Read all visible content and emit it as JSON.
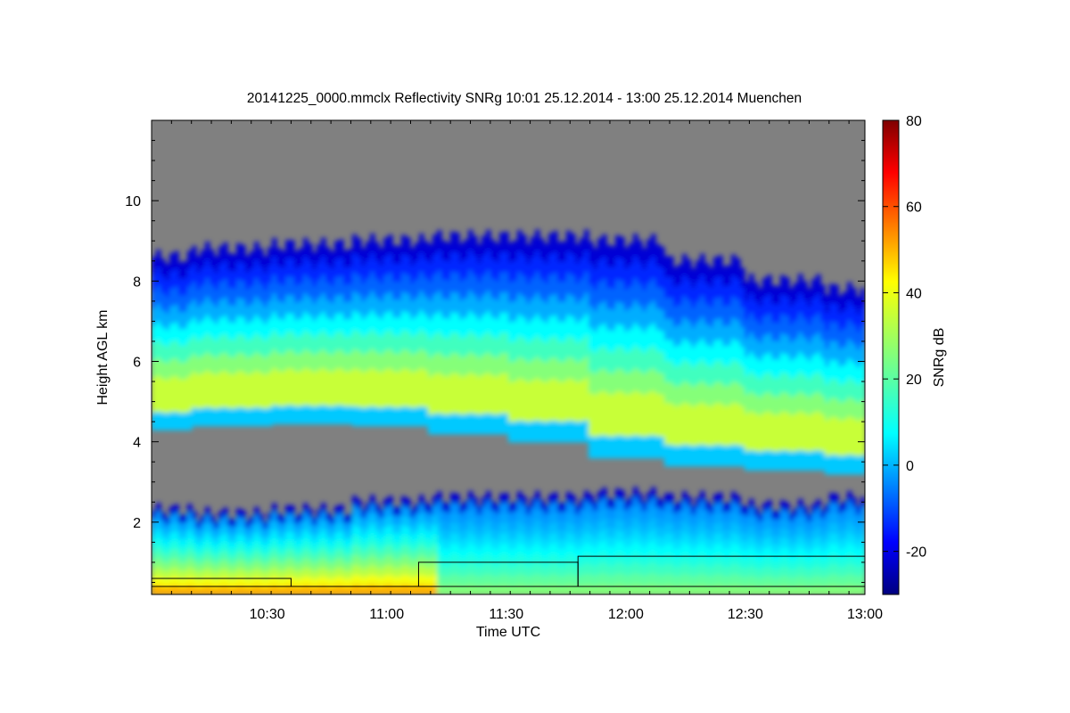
{
  "chart_data": {
    "type": "heatmap",
    "title": "20141225_0000.mmclx Reflectivity SNRg   10:01 25.12.2014 - 13:00 25.12.2014 Muenchen",
    "xlabel": "Time UTC",
    "ylabel": "Height AGL km",
    "xlim": [
      "10:01",
      "13:00"
    ],
    "ylim": [
      0.2,
      12.0
    ],
    "x_ticks": [
      "10:30",
      "11:00",
      "11:30",
      "12:00",
      "12:30",
      "13:00"
    ],
    "y_ticks": [
      2,
      4,
      6,
      8,
      10
    ],
    "colorbar": {
      "label": "SNRg dB",
      "range": [
        -30,
        80
      ],
      "ticks": [
        -20,
        0,
        20,
        40,
        60,
        80
      ],
      "colormap": "jet"
    },
    "no_signal_color": "#808080",
    "layers": [
      {
        "name": "ice-cloud",
        "start": "10:01",
        "end": "13:00",
        "base_km": [
          4.3,
          4.4,
          4.45,
          4.4,
          4.2,
          4.0,
          3.6,
          3.4,
          3.3,
          3.2
        ],
        "top_km": [
          8.6,
          8.8,
          8.9,
          9.0,
          9.1,
          9.1,
          9.0,
          8.5,
          8.0,
          7.8
        ],
        "peak_snr_db": 35
      },
      {
        "name": "low-level-precipitation",
        "start": "10:01",
        "end": "13:00",
        "top_km": [
          2.3,
          2.2,
          2.3,
          2.5,
          2.6,
          2.6,
          2.7,
          2.6,
          2.4,
          2.6
        ],
        "peak_snr_db": 55
      }
    ],
    "annotation_lines_km": [
      {
        "start": "10:01",
        "end": "10:36",
        "height": 0.6
      },
      {
        "start": "11:08",
        "end": "11:48",
        "height": 1.0
      },
      {
        "start": "11:48",
        "end": "13:00",
        "height": 1.15
      }
    ]
  }
}
